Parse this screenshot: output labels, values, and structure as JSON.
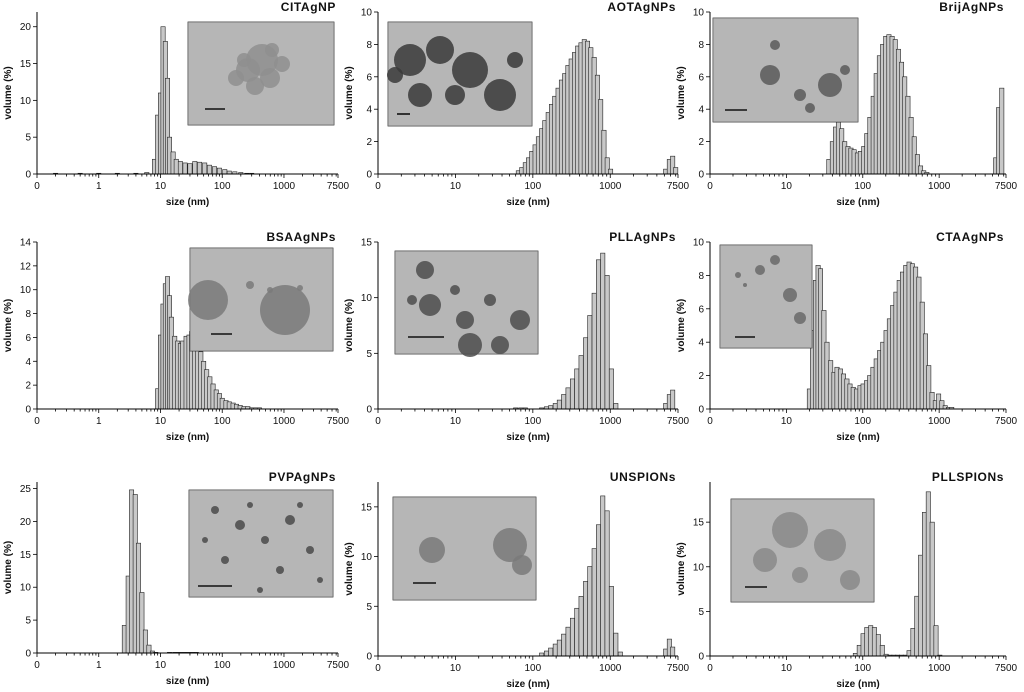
{
  "chart_data": [
    {
      "type": "bar",
      "title": "CITAgNP",
      "xlabel": "size (nm)",
      "ylabel": "volume (%)",
      "xscale": "log",
      "xtick_labels": [
        "0",
        "1",
        "10",
        "100",
        "1000",
        "7500"
      ],
      "xticks": [
        0.1,
        1,
        10,
        100,
        1000,
        7500
      ],
      "xlim": [
        0.1,
        7500
      ],
      "ylim": [
        0,
        22
      ],
      "yticks": [
        0,
        5,
        10,
        15,
        20
      ],
      "inset_image": "TEM micrograph",
      "x": [
        0.2,
        0.5,
        1,
        2,
        4,
        6,
        8,
        9,
        10,
        11,
        12,
        13,
        14,
        16,
        18,
        21,
        25,
        30,
        36,
        43,
        52,
        62,
        75,
        90,
        110,
        130,
        160,
        200,
        250,
        300
      ],
      "values": [
        0.1,
        0.1,
        0.1,
        0.1,
        0.1,
        0.2,
        2,
        8,
        11,
        20,
        18,
        13,
        5,
        3,
        2,
        1.7,
        1.5,
        1.4,
        1.7,
        1.6,
        1.5,
        1.2,
        1.0,
        0.8,
        0.6,
        0.4,
        0.3,
        0.2,
        0.1,
        0.1
      ]
    },
    {
      "type": "bar",
      "title": "AOTAgNPs",
      "xlabel": "size (nm)",
      "ylabel": "volume (%)",
      "xscale": "log",
      "xtick_labels": [
        "0",
        "10",
        "100",
        "1000",
        "7500"
      ],
      "xticks": [
        1,
        10,
        100,
        1000,
        7500
      ],
      "xlim": [
        1,
        7500
      ],
      "ylim": [
        0,
        10
      ],
      "yticks": [
        0,
        2,
        4,
        6,
        8,
        10
      ],
      "inset_image": "TEM micrograph",
      "x": [
        65,
        72,
        80,
        88,
        97,
        107,
        118,
        130,
        143,
        158,
        174,
        192,
        212,
        234,
        258,
        284,
        313,
        345,
        380,
        419,
        462,
        509,
        561,
        619,
        682,
        752,
        829,
        914,
        1010,
        5200,
        5800,
        6400,
        7000
      ],
      "values": [
        0.2,
        0.4,
        0.7,
        1.0,
        1.4,
        1.8,
        2.3,
        2.8,
        3.3,
        3.8,
        4.3,
        4.8,
        5.3,
        5.8,
        6.2,
        6.7,
        7.1,
        7.5,
        7.9,
        8.1,
        8.3,
        8.2,
        7.8,
        7.2,
        6.1,
        4.6,
        2.7,
        1.0,
        0.3,
        0.3,
        0.9,
        1.1,
        0.4
      ]
    },
    {
      "type": "bar",
      "title": "BrijAgNPs",
      "xlabel": "size (nm)",
      "ylabel": "volume (%)",
      "xscale": "log",
      "xtick_labels": [
        "0",
        "10",
        "100",
        "1000",
        "7500"
      ],
      "xticks": [
        1,
        10,
        100,
        1000,
        7500
      ],
      "xlim": [
        1,
        7500
      ],
      "ylim": [
        0,
        10
      ],
      "yticks": [
        0,
        2,
        4,
        6,
        8,
        10
      ],
      "inset_image": "TEM micrograph",
      "x": [
        36,
        40,
        44,
        48,
        53,
        58,
        64,
        70,
        77,
        85,
        93,
        103,
        113,
        124,
        137,
        150,
        165,
        182,
        200,
        220,
        242,
        266,
        293,
        322,
        354,
        390,
        429,
        472,
        519,
        571,
        628,
        690,
        5500,
        6000,
        6600
      ],
      "values": [
        0.9,
        2.0,
        2.9,
        3.2,
        2.8,
        2.0,
        1.7,
        1.6,
        1.5,
        1.3,
        1.4,
        1.7,
        2.5,
        3.5,
        4.8,
        6.2,
        7.3,
        8.0,
        8.5,
        8.6,
        8.5,
        8.3,
        7.7,
        6.9,
        6.0,
        4.8,
        3.5,
        2.3,
        1.2,
        0.5,
        0.2,
        0.1,
        1.0,
        4.1,
        5.3
      ]
    },
    {
      "type": "bar",
      "title": "BSAAgNPs",
      "xlabel": "size (nm)",
      "ylabel": "volume (%)",
      "xscale": "log",
      "xtick_labels": [
        "0",
        "1",
        "10",
        "100",
        "1000",
        "7500"
      ],
      "xticks": [
        0.1,
        1,
        10,
        100,
        1000,
        7500
      ],
      "xlim": [
        0.1,
        7500
      ],
      "ylim": [
        0,
        14
      ],
      "yticks": [
        0,
        2,
        4,
        6,
        8,
        10,
        12,
        14
      ],
      "inset_image": "TEM micrograph",
      "x": [
        9,
        10,
        11,
        12,
        13,
        14,
        15,
        17,
        19,
        21,
        23,
        26,
        29,
        32,
        36,
        40,
        45,
        50,
        56,
        63,
        71,
        80,
        90,
        100,
        115,
        130,
        150,
        170,
        195,
        225,
        260,
        300,
        350,
        400
      ],
      "values": [
        1.7,
        6.2,
        8.8,
        10.5,
        11.1,
        9.5,
        7.7,
        6.1,
        5.7,
        5.5,
        5.7,
        6.1,
        6.2,
        6.5,
        6.1,
        5.5,
        4.8,
        4.0,
        3.3,
        2.7,
        2.1,
        1.6,
        1.3,
        0.9,
        0.7,
        0.6,
        0.5,
        0.4,
        0.3,
        0.2,
        0.2,
        0.1,
        0.1,
        0.1
      ]
    },
    {
      "type": "bar",
      "title": "PLLAgNPs",
      "xlabel": "size (nm)",
      "ylabel": "volume (%)",
      "xscale": "log",
      "xtick_labels": [
        "0",
        "10",
        "100",
        "1000",
        "7500"
      ],
      "xticks": [
        1,
        10,
        100,
        1000,
        7500
      ],
      "xlim": [
        1,
        7500
      ],
      "ylim": [
        0,
        15
      ],
      "yticks": [
        0,
        5,
        10,
        15
      ],
      "inset_image": "TEM micrograph",
      "x": [
        60,
        70,
        80,
        130,
        150,
        170,
        195,
        220,
        250,
        285,
        325,
        370,
        420,
        480,
        545,
        620,
        705,
        800,
        910,
        1035,
        1180,
        5200,
        5800,
        6400
      ],
      "values": [
        0.1,
        0.1,
        0.1,
        0.1,
        0.2,
        0.3,
        0.5,
        0.8,
        1.3,
        1.9,
        2.7,
        3.6,
        4.8,
        6.4,
        8.4,
        10.4,
        13.4,
        14.0,
        12.0,
        3.6,
        0.5,
        0.5,
        1.3,
        1.7
      ]
    },
    {
      "type": "bar",
      "title": "CTAAgNPs",
      "xlabel": "size (nm)",
      "ylabel": "volume (%)",
      "xscale": "log",
      "xtick_labels": [
        "0",
        "10",
        "100",
        "1000",
        "7500"
      ],
      "xticks": [
        1,
        10,
        100,
        1000,
        7500
      ],
      "xlim": [
        1,
        7500
      ],
      "ylim": [
        0,
        10
      ],
      "yticks": [
        0,
        2,
        4,
        6,
        8,
        10
      ],
      "inset_image": "TEM micrograph",
      "x": [
        20,
        22,
        24,
        26,
        28,
        31,
        34,
        38,
        42,
        46,
        51,
        56,
        62,
        68,
        75,
        83,
        92,
        101,
        112,
        123,
        136,
        150,
        166,
        183,
        202,
        223,
        246,
        272,
        300,
        331,
        366,
        404,
        446,
        492,
        543,
        600,
        662,
        731,
        807,
        891,
        984,
        1086,
        1200,
        1325,
        1460
      ],
      "values": [
        1.2,
        4.7,
        7.7,
        8.6,
        8.4,
        5.9,
        4.0,
        2.9,
        2.2,
        2.5,
        2.4,
        2.1,
        1.8,
        1.5,
        1.3,
        1.2,
        1.4,
        1.5,
        1.7,
        2.0,
        2.5,
        3.0,
        3.5,
        4.0,
        4.7,
        5.4,
        6.2,
        7.0,
        7.7,
        8.2,
        8.6,
        8.8,
        8.7,
        8.5,
        7.9,
        6.4,
        4.5,
        2.6,
        1.0,
        0.5,
        0.9,
        0.5,
        0.2,
        0.1,
        0.1
      ]
    },
    {
      "type": "bar",
      "title": "PVPAgNPs",
      "xlabel": "size (nm)",
      "ylabel": "volume (%)",
      "xscale": "log",
      "xtick_labels": [
        "0",
        "1",
        "10",
        "100",
        "1000",
        "7500"
      ],
      "xticks": [
        0.1,
        1,
        10,
        100,
        1000,
        7500
      ],
      "xlim": [
        0.1,
        7500
      ],
      "ylim": [
        0,
        26
      ],
      "yticks": [
        0,
        5,
        10,
        15,
        20,
        25
      ],
      "inset_image": "TEM micrograph",
      "x": [
        2.6,
        3.0,
        3.4,
        3.9,
        4.4,
        5.0,
        5.7,
        6.5,
        7.4,
        8.4,
        14,
        17,
        20,
        24,
        28,
        33,
        38
      ],
      "values": [
        4.2,
        11.7,
        24.8,
        24.1,
        16.7,
        9.2,
        3.5,
        1.2,
        0.3,
        0.1,
        0.1,
        0.1,
        0.1,
        0.1,
        0.1,
        0.1,
        0.1
      ]
    },
    {
      "type": "bar",
      "title": "UNSPIONs",
      "xlabel": "size (nm)",
      "ylabel": "volume (%)",
      "xscale": "log",
      "xtick_labels": [
        "0",
        "10",
        "100",
        "1000",
        "7500"
      ],
      "xticks": [
        1,
        10,
        100,
        1000,
        7500
      ],
      "xlim": [
        1,
        7500
      ],
      "ylim": [
        0,
        17.5
      ],
      "yticks": [
        0,
        5,
        10,
        15
      ],
      "inset_image": "TEM micrograph",
      "x": [
        130,
        150,
        170,
        195,
        220,
        250,
        285,
        325,
        370,
        420,
        480,
        545,
        620,
        705,
        800,
        910,
        1035,
        1180,
        1350,
        5200,
        5800,
        6400
      ],
      "values": [
        0.3,
        0.5,
        0.8,
        1.2,
        1.6,
        2.2,
        2.9,
        3.8,
        4.8,
        6.0,
        7.5,
        9.0,
        10.8,
        13.2,
        16.1,
        14.6,
        7.0,
        2.3,
        0.4,
        0.7,
        1.7,
        0.9
      ]
    },
    {
      "type": "bar",
      "title": "PLLSPIONs",
      "xlabel": "size (nm)",
      "ylabel": "volume (%)",
      "xscale": "log",
      "xtick_labels": [
        "0",
        "10",
        "100",
        "1000",
        "7500"
      ],
      "xticks": [
        1,
        10,
        100,
        1000,
        7500
      ],
      "xlim": [
        1,
        7500
      ],
      "ylim": [
        0,
        19.5
      ],
      "yticks": [
        0,
        5,
        10,
        15
      ],
      "inset_image": "TEM micrograph",
      "x": [
        80,
        90,
        101,
        113,
        127,
        142,
        160,
        180,
        202,
        227,
        255,
        286,
        321,
        360,
        404,
        454,
        510,
        572,
        642,
        721,
        810,
        909,
        1020
      ],
      "values": [
        0.3,
        1.2,
        2.5,
        3.2,
        3.4,
        3.2,
        2.4,
        1.2,
        0.2,
        0.1,
        0.1,
        0.1,
        0.1,
        0.1,
        0.6,
        3.1,
        6.7,
        11.3,
        16.1,
        18.4,
        15.0,
        3.4,
        0.1
      ]
    }
  ]
}
